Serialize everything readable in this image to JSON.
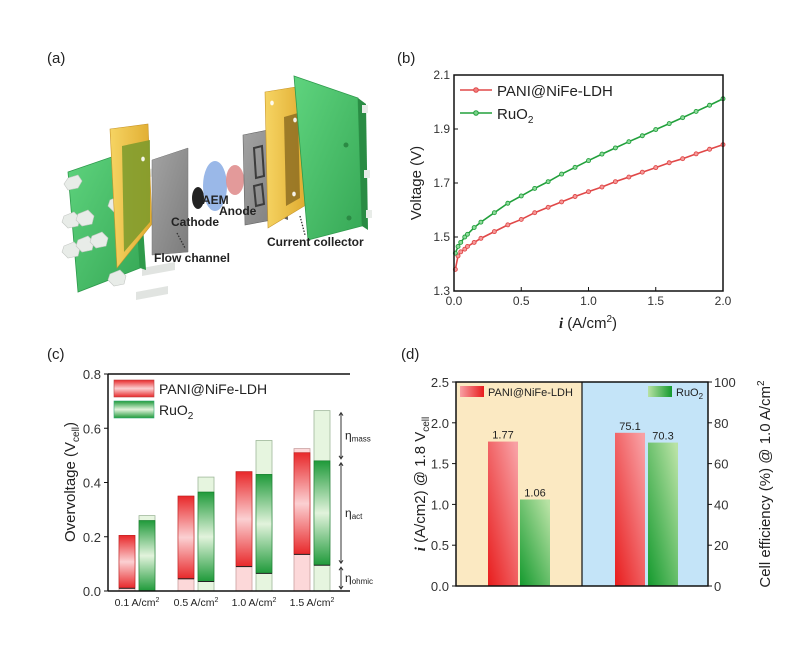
{
  "panels": {
    "a": {
      "label": "(a)"
    },
    "b": {
      "label": "(b)"
    },
    "c": {
      "label": "(c)"
    },
    "d": {
      "label": "(d)"
    }
  },
  "diagram": {
    "labels": {
      "aem": "AEM",
      "anode": "Anode",
      "cathode": "Cathode",
      "flow_channel": "Flow channel",
      "current_collector": "Current collector"
    },
    "colors": {
      "end_plate": "#4cc26a",
      "current_collector": "#f2c84b",
      "flow_plate": "#8e8e8e",
      "membrane": "#8fb0e6",
      "anode": "#e08f8f",
      "cathode": "#222222",
      "bolt": "#e4e8e4"
    }
  },
  "chart_data": [
    {
      "type": "line",
      "panel": "b",
      "xlabel_italic": "i",
      "xlabel": " (A/cm",
      "xlabel_sup": "2",
      "xlabel_end": ")",
      "ylabel": "Voltage (V)",
      "xlim": [
        0.0,
        2.0
      ],
      "ylim": [
        1.3,
        2.1
      ],
      "xticks": [
        "0.0",
        "0.5",
        "1.0",
        "1.5",
        "2.0"
      ],
      "yticks": [
        "1.3",
        "1.5",
        "1.7",
        "1.9",
        "2.1"
      ],
      "legend_position": "top-left",
      "series": [
        {
          "name": "PANI@NiFe-LDH",
          "color": "#e04848",
          "x": [
            0.01,
            0.03,
            0.05,
            0.08,
            0.1,
            0.15,
            0.2,
            0.3,
            0.4,
            0.5,
            0.6,
            0.7,
            0.8,
            0.9,
            1.0,
            1.1,
            1.2,
            1.3,
            1.4,
            1.5,
            1.6,
            1.7,
            1.8,
            1.9,
            2.0
          ],
          "y": [
            1.38,
            1.43,
            1.445,
            1.455,
            1.465,
            1.48,
            1.495,
            1.52,
            1.545,
            1.565,
            1.59,
            1.61,
            1.63,
            1.65,
            1.668,
            1.685,
            1.705,
            1.722,
            1.74,
            1.757,
            1.775,
            1.79,
            1.808,
            1.825,
            1.842
          ]
        },
        {
          "name": "RuO",
          "name_sub": "2",
          "color": "#22a03c",
          "x": [
            0.01,
            0.03,
            0.05,
            0.08,
            0.1,
            0.15,
            0.2,
            0.3,
            0.4,
            0.5,
            0.6,
            0.7,
            0.8,
            0.9,
            1.0,
            1.1,
            1.2,
            1.3,
            1.4,
            1.5,
            1.6,
            1.7,
            1.8,
            1.9,
            2.0
          ],
          "y": [
            1.44,
            1.465,
            1.48,
            1.5,
            1.51,
            1.535,
            1.555,
            1.59,
            1.625,
            1.652,
            1.68,
            1.705,
            1.733,
            1.758,
            1.783,
            1.807,
            1.83,
            1.853,
            1.875,
            1.898,
            1.92,
            1.942,
            1.965,
            1.988,
            2.012
          ]
        }
      ]
    },
    {
      "type": "bar",
      "subtype": "floating-stacked",
      "panel": "c",
      "ylabel": "Overvoltage (V",
      "ylabel_sub": "cell",
      "ylabel_end": ")",
      "ylim": [
        0.0,
        0.8
      ],
      "yticks": [
        "0.0",
        "0.2",
        "0.4",
        "0.6",
        "0.8"
      ],
      "categories": [
        "0.1 A/cm",
        "0.5 A/cm",
        "1.0 A/cm",
        "1.5 A/cm"
      ],
      "category_sup": "2",
      "legend_position": "top-left",
      "legend": [
        {
          "name": "PANI@NiFe-LDH",
          "color": "#e8282a"
        },
        {
          "name": "RuO",
          "sub": "2",
          "color": "#1f9a3a"
        }
      ],
      "series": [
        {
          "name": "PANI@NiFe-LDH",
          "ohmic": [
            0.01,
            0.045,
            0.09,
            0.135
          ],
          "act_top": [
            0.205,
            0.35,
            0.44,
            0.51
          ],
          "total": [
            0.205,
            0.35,
            0.44,
            0.525
          ]
        },
        {
          "name": "RuO2",
          "ohmic": [
            0.0,
            0.035,
            0.065,
            0.095
          ],
          "act_top": [
            0.26,
            0.365,
            0.43,
            0.48
          ],
          "total": [
            0.278,
            0.42,
            0.555,
            0.665
          ]
        }
      ],
      "region_labels": [
        {
          "text": "η",
          "sub": "mass"
        },
        {
          "text": "η",
          "sub": "act"
        },
        {
          "text": "η",
          "sub": "ohmic"
        }
      ],
      "region_bounds": [
        0.0,
        0.095,
        0.48,
        0.665
      ]
    },
    {
      "type": "bar",
      "subtype": "dual-axis",
      "panel": "d",
      "ylabel_left_italic": "i",
      "ylabel_left": " (A/cm2) @ 1.8 V",
      "ylabel_left_sub": "cell",
      "ylabel_right": "Cell efficiency (%) @ 1.0 A/cm",
      "ylabel_right_sup": "2",
      "ylim_left": [
        0.0,
        2.5
      ],
      "ylim_right": [
        0,
        100
      ],
      "yticks_left": [
        "0.0",
        "0.5",
        "1.0",
        "1.5",
        "2.0",
        "2.5"
      ],
      "yticks_right": [
        "0",
        "20",
        "40",
        "60",
        "80",
        "100"
      ],
      "background_left": "#fbe9c2",
      "background_right": "#c4e4f8",
      "legend": [
        {
          "name": "PANI@NiFe-LDH",
          "color": "#e8282a",
          "position": "top-left"
        },
        {
          "name": "RuO",
          "sub": "2",
          "color": "#1f9a3a",
          "position": "top-right"
        }
      ],
      "groups": [
        {
          "metric": "current density",
          "axis": "left",
          "bars": [
            {
              "series": "PANI@NiFe-LDH",
              "value": 1.77,
              "label": "1.77"
            },
            {
              "series": "RuO2",
              "value": 1.06,
              "label": "1.06"
            }
          ]
        },
        {
          "metric": "cell efficiency",
          "axis": "right",
          "bars": [
            {
              "series": "PANI@NiFe-LDH",
              "value": 75.1,
              "label": "75.1"
            },
            {
              "series": "RuO2",
              "value": 70.3,
              "label": "70.3"
            }
          ]
        }
      ]
    }
  ]
}
